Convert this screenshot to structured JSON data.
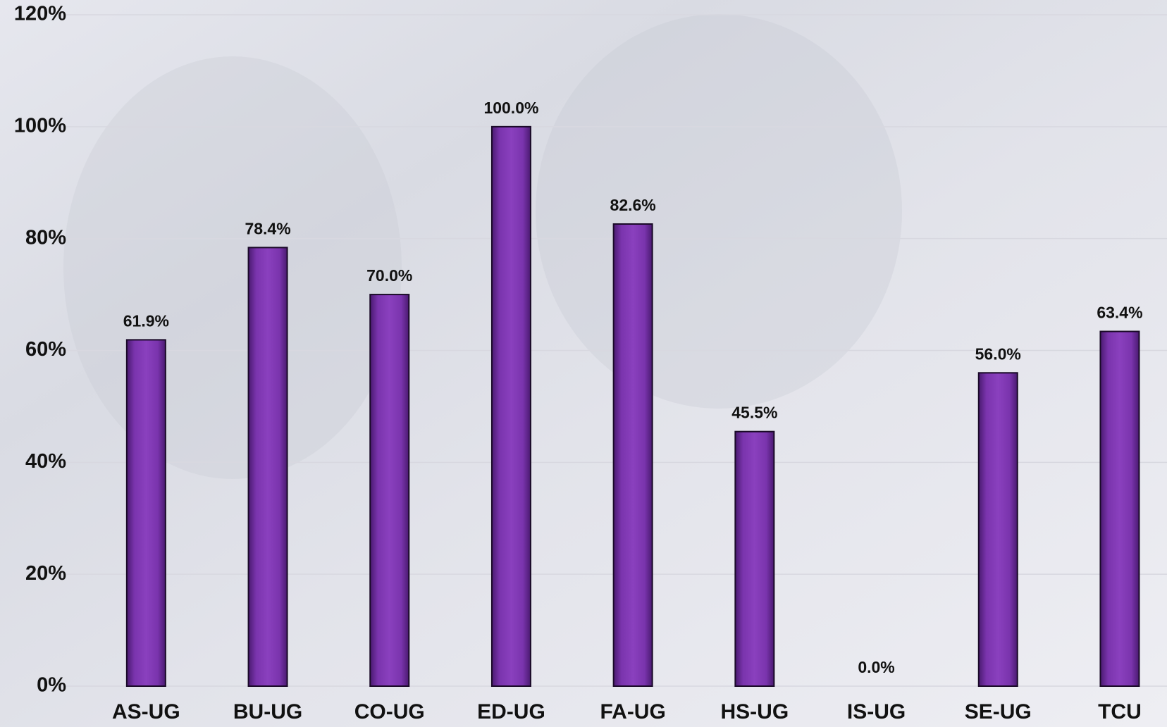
{
  "chart_data": {
    "type": "bar",
    "categories": [
      "AS-UG",
      "BU-UG",
      "CO-UG",
      "ED-UG",
      "FA-UG",
      "HS-UG",
      "IS-UG",
      "SE-UG",
      "TCU"
    ],
    "values": [
      61.9,
      78.4,
      70.0,
      100.0,
      82.6,
      45.5,
      0.0,
      56.0,
      63.4
    ],
    "value_labels": [
      "61.9%",
      "78.4%",
      "70.0%",
      "100.0%",
      "82.6%",
      "45.5%",
      "0.0%",
      "56.0%",
      "63.4%"
    ],
    "color": "#7030a0",
    "ylim": [
      0,
      120
    ],
    "yticks": [
      {
        "value": 0,
        "label": "0%"
      },
      {
        "value": 20,
        "label": "20%"
      },
      {
        "value": 40,
        "label": "40%"
      },
      {
        "value": 60,
        "label": "60%"
      },
      {
        "value": 80,
        "label": "80%"
      },
      {
        "value": 100,
        "label": "100%"
      },
      {
        "value": 120,
        "label": "120%"
      }
    ],
    "grid": true
  }
}
